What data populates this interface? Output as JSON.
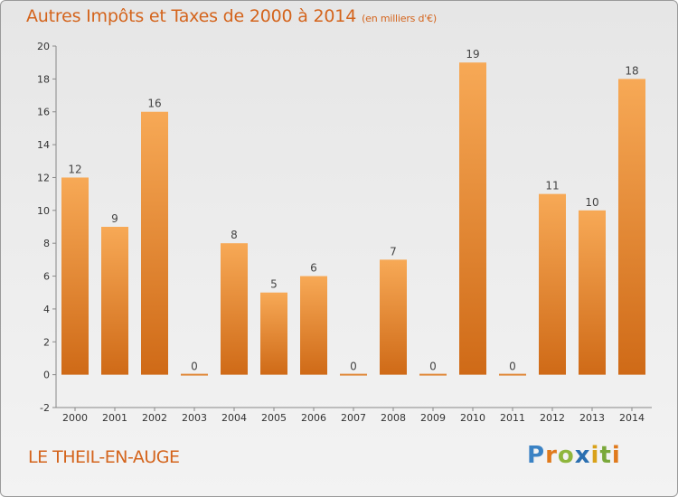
{
  "title": "Autres Impôts et Taxes de 2000 à 2014",
  "subtitle": "(en milliers d'€)",
  "commune": "LE THEIL-EN-AUGE",
  "logo": {
    "letters": [
      "P",
      "r",
      "o",
      "x",
      "i",
      "t",
      "i"
    ],
    "colors": [
      "#3a82c4",
      "#e07a1c",
      "#8fb63c",
      "#2a6fb0",
      "#d9a21a",
      "#7aa83a",
      "#e07a1c"
    ]
  },
  "colors": {
    "bar_light": "#f7a956",
    "bar_dark": "#cf6a17",
    "text_accent": "#d4641c"
  },
  "chart_data": {
    "type": "bar",
    "categories": [
      "2000",
      "2001",
      "2002",
      "2003",
      "2004",
      "2005",
      "2006",
      "2007",
      "2008",
      "2009",
      "2010",
      "2011",
      "2012",
      "2013",
      "2014"
    ],
    "values": [
      12,
      9,
      16,
      0,
      8,
      5,
      6,
      0,
      7,
      0,
      19,
      0,
      11,
      10,
      18
    ],
    "ylim": [
      -2,
      20
    ],
    "yticks": [
      -2,
      0,
      2,
      4,
      6,
      8,
      10,
      12,
      14,
      16,
      18,
      20
    ],
    "grid": false,
    "legend": "none"
  }
}
